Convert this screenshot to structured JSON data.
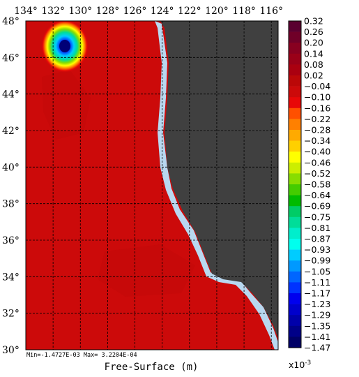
{
  "chart_data": {
    "type": "heatmap",
    "title": "",
    "xlabel": "Free-Surface (m)",
    "ylabel": "",
    "x_ticks": [
      "134°",
      "132°",
      "130°",
      "128°",
      "126°",
      "124°",
      "122°",
      "120°",
      "118°",
      "116°"
    ],
    "y_ticks": [
      "48°",
      "46°",
      "44°",
      "42°",
      "40°",
      "38°",
      "36°",
      "34°",
      "32°",
      "30°"
    ],
    "xlim": [
      134,
      115.5
    ],
    "ylim": [
      30,
      48
    ],
    "grid": true,
    "stats_text": "Min=-1.4727E-03   Max= 3.2204E-04",
    "colorbar": {
      "multiplier_label": "x10",
      "multiplier_exponent": "-3",
      "labels": [
        "0.32",
        "0.26",
        "0.20",
        "0.14",
        "0.08",
        "0.02",
        "-0.04",
        "-0.10",
        "-0.16",
        "-0.22",
        "-0.28",
        "-0.34",
        "-0.40",
        "-0.46",
        "-0.52",
        "-0.58",
        "-0.64",
        "-0.69",
        "-0.75",
        "-0.81",
        "-0.87",
        "-0.93",
        "-0.99",
        "-1.05",
        "-1.11",
        "-1.17",
        "-1.23",
        "-1.29",
        "-1.35",
        "-1.41",
        "-1.47"
      ],
      "colors": [
        "#5a0030",
        "#700028",
        "#880020",
        "#9a0018",
        "#aa0010",
        "#bb0808",
        "#cc0a0a",
        "#e80808",
        "#ff5000",
        "#ff8000",
        "#ffaa00",
        "#ffd000",
        "#ffff00",
        "#ccee00",
        "#88dd00",
        "#44cc00",
        "#00bb00",
        "#00cc66",
        "#00dd99",
        "#00eecc",
        "#00ffee",
        "#00ccff",
        "#0099ff",
        "#0066ff",
        "#0033ff",
        "#0000ee",
        "#0000cc",
        "#0000aa",
        "#000088",
        "#000066"
      ]
    },
    "background_value_color": "#cc0a0a",
    "land_color": "#404040",
    "coast_color": "#b8d8f0",
    "anomaly": {
      "lon": 131.0,
      "lat": 46.8,
      "min_value": "-1.47"
    }
  }
}
